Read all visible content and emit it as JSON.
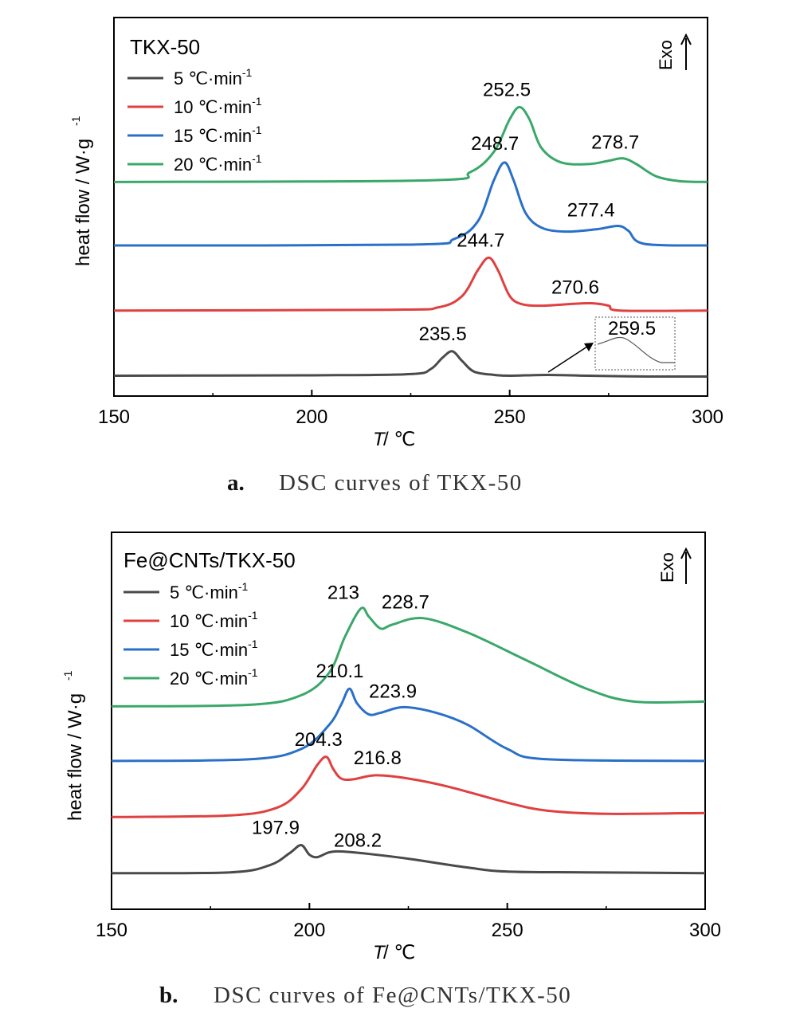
{
  "chart_data": [
    {
      "type": "line",
      "title": "TKX-50",
      "xlabel_italic": "T",
      "xlabel_unit": " / ℃",
      "ylabel": "heat flow / W·g",
      "ylabel_sup": "-1",
      "exo_label": "Exo",
      "xlim": [
        150,
        300
      ],
      "xticks": [
        "150",
        "200",
        "250",
        "300"
      ],
      "caption_letter": "a.",
      "caption": "DSC curves of TKX-50",
      "series": [
        {
          "name": "5 ℃·min",
          "sup": "-1",
          "color": "#4a4a4a",
          "baseline": 0.0,
          "points": [
            [
              150,
              0
            ],
            [
              200,
              0.005
            ],
            [
              225,
              0.02
            ],
            [
              230,
              0.08
            ],
            [
              233,
              0.22
            ],
            [
              235.5,
              0.3
            ],
            [
              238,
              0.18
            ],
            [
              241,
              0.05
            ],
            [
              246,
              0.01
            ],
            [
              250,
              0.0
            ],
            [
              259.5,
              0.01
            ],
            [
              270,
              0.0
            ],
            [
              285,
              -0.01
            ],
            [
              300,
              -0.01
            ]
          ]
        },
        {
          "name": "10 ℃·min",
          "sup": "-1",
          "color": "#e04040",
          "baseline": 0.8,
          "points": [
            [
              150,
              0.8
            ],
            [
              220,
              0.81
            ],
            [
              232,
              0.84
            ],
            [
              238,
              0.98
            ],
            [
              242,
              1.3
            ],
            [
              244.7,
              1.45
            ],
            [
              247,
              1.3
            ],
            [
              250,
              0.98
            ],
            [
              253,
              0.88
            ],
            [
              258,
              0.86
            ],
            [
              265,
              0.88
            ],
            [
              270.6,
              0.89
            ],
            [
              275,
              0.86
            ],
            [
              278,
              0.8
            ],
            [
              300,
              0.8
            ]
          ]
        },
        {
          "name": "15 ℃·min",
          "sup": "-1",
          "color": "#2a70c8",
          "baseline": 1.6,
          "points": [
            [
              150,
              1.6
            ],
            [
              225,
              1.61
            ],
            [
              236,
              1.68
            ],
            [
              242,
              1.9
            ],
            [
              246,
              2.4
            ],
            [
              248.7,
              2.62
            ],
            [
              251,
              2.4
            ],
            [
              254,
              2.0
            ],
            [
              258,
              1.82
            ],
            [
              264,
              1.77
            ],
            [
              272,
              1.8
            ],
            [
              277.4,
              1.84
            ],
            [
              280,
              1.78
            ],
            [
              284,
              1.62
            ],
            [
              300,
              1.6
            ]
          ]
        },
        {
          "name": "20 ℃·min",
          "sup": "-1",
          "color": "#3aa86a",
          "baseline": 2.38,
          "points": [
            [
              150,
              2.38
            ],
            [
              230,
              2.4
            ],
            [
              240,
              2.5
            ],
            [
              246,
              2.75
            ],
            [
              250,
              3.15
            ],
            [
              252.5,
              3.3
            ],
            [
              255,
              3.15
            ],
            [
              258,
              2.8
            ],
            [
              263,
              2.62
            ],
            [
              270,
              2.6
            ],
            [
              275,
              2.64
            ],
            [
              278.7,
              2.67
            ],
            [
              282,
              2.6
            ],
            [
              287,
              2.45
            ],
            [
              293,
              2.39
            ],
            [
              300,
              2.38
            ]
          ]
        }
      ],
      "ylim": [
        -0.25,
        4.4
      ],
      "peaks": [
        {
          "label": "235.5",
          "x": 235.5,
          "y": 0.3
        },
        {
          "label": "244.7",
          "x": 244.7,
          "y": 1.45
        },
        {
          "label": "270.6",
          "x": 270.6,
          "y": 0.89
        },
        {
          "label": "248.7",
          "x": 248.7,
          "y": 2.62
        },
        {
          "label": "277.4",
          "x": 277.4,
          "y": 1.84
        },
        {
          "label": "252.5",
          "x": 252.5,
          "y": 3.3
        },
        {
          "label": "278.7",
          "x": 278.7,
          "y": 2.67
        }
      ],
      "inset_label": "259.5"
    },
    {
      "type": "line",
      "title": "Fe@CNTs/TKX-50",
      "xlabel_italic": "T",
      "xlabel_unit": " / ℃",
      "ylabel": "heat flow / W·g",
      "ylabel_sup": "-1",
      "exo_label": "Exo",
      "xlim": [
        150,
        300
      ],
      "xticks": [
        "150",
        "200",
        "250",
        "300"
      ],
      "caption_letter": "b.",
      "caption": "DSC curves of Fe@CNTs/TKX-50",
      "series": [
        {
          "name": "5 ℃·min",
          "sup": "-1",
          "color": "#4a4a4a",
          "baseline": 0.0,
          "points": [
            [
              150,
              0
            ],
            [
              180,
              0.01
            ],
            [
              190,
              0.1
            ],
            [
              195,
              0.25
            ],
            [
              197.9,
              0.35
            ],
            [
              200,
              0.23
            ],
            [
              202,
              0.2
            ],
            [
              205,
              0.26
            ],
            [
              208.2,
              0.27
            ],
            [
              215,
              0.24
            ],
            [
              225,
              0.18
            ],
            [
              240,
              0.07
            ],
            [
              250,
              0.02
            ],
            [
              270,
              0.01
            ],
            [
              300,
              0.0
            ]
          ]
        },
        {
          "name": "10 ℃·min",
          "sup": "-1",
          "color": "#e04040",
          "baseline": 0.7,
          "points": [
            [
              150,
              0.7
            ],
            [
              180,
              0.72
            ],
            [
              192,
              0.82
            ],
            [
              198,
              1.05
            ],
            [
              202,
              1.35
            ],
            [
              204.3,
              1.45
            ],
            [
              206,
              1.3
            ],
            [
              208,
              1.18
            ],
            [
              211,
              1.17
            ],
            [
              216.8,
              1.22
            ],
            [
              225,
              1.18
            ],
            [
              235,
              1.08
            ],
            [
              250,
              0.88
            ],
            [
              260,
              0.78
            ],
            [
              275,
              0.74
            ],
            [
              300,
              0.75
            ]
          ]
        },
        {
          "name": "15 ℃·min",
          "sup": "-1",
          "color": "#2a70c8",
          "baseline": 1.4,
          "points": [
            [
              150,
              1.4
            ],
            [
              185,
              1.42
            ],
            [
              198,
              1.55
            ],
            [
              205,
              1.85
            ],
            [
              208,
              2.1
            ],
            [
              210.1,
              2.3
            ],
            [
              212,
              2.12
            ],
            [
              215,
              1.98
            ],
            [
              218,
              2.0
            ],
            [
              223.9,
              2.07
            ],
            [
              232,
              2.0
            ],
            [
              240,
              1.85
            ],
            [
              250,
              1.55
            ],
            [
              260,
              1.42
            ],
            [
              300,
              1.4
            ]
          ]
        },
        {
          "name": "20 ℃·min",
          "sup": "-1",
          "color": "#3aa86a",
          "baseline": 2.08,
          "points": [
            [
              150,
              2.08
            ],
            [
              185,
              2.1
            ],
            [
              198,
              2.22
            ],
            [
              205,
              2.5
            ],
            [
              209,
              2.95
            ],
            [
              213,
              3.3
            ],
            [
              215,
              3.2
            ],
            [
              218,
              3.05
            ],
            [
              221,
              3.1
            ],
            [
              228.7,
              3.18
            ],
            [
              240,
              3.0
            ],
            [
              255,
              2.65
            ],
            [
              270,
              2.3
            ],
            [
              282,
              2.14
            ],
            [
              300,
              2.14
            ]
          ]
        }
      ],
      "ylim": [
        -0.45,
        4.25
      ],
      "peaks": [
        {
          "label": "197.9",
          "x": 197.9,
          "y": 0.35
        },
        {
          "label": "208.2",
          "x": 208.2,
          "y": 0.27
        },
        {
          "label": "204.3",
          "x": 204.3,
          "y": 1.45
        },
        {
          "label": "216.8",
          "x": 216.8,
          "y": 1.22
        },
        {
          "label": "210.1",
          "x": 210.1,
          "y": 2.3
        },
        {
          "label": "223.9",
          "x": 223.9,
          "y": 2.07
        },
        {
          "label": "213",
          "x": 213,
          "y": 3.3
        },
        {
          "label": "228.7",
          "x": 228.7,
          "y": 3.18
        }
      ]
    }
  ]
}
